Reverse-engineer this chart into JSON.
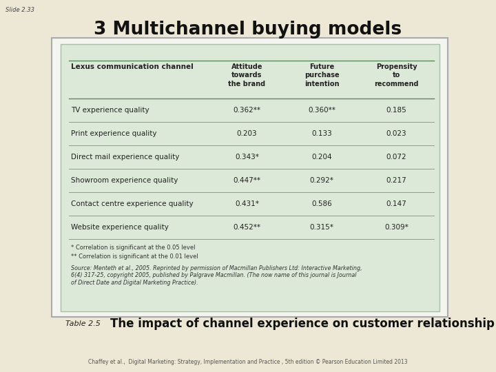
{
  "bg_color": "#ede8d5",
  "slide_label": "Slide 2.33",
  "title": "3 Multichannel buying models",
  "table_bg": "#dce8d8",
  "header_row": [
    "Lexus communication channel",
    "Attitude\ntowards\nthe brand",
    "Future\npurchase\nintention",
    "Propensity\nto\nrecommend"
  ],
  "rows": [
    [
      "TV experience quality",
      "0.362**",
      "0.360**",
      "0.185"
    ],
    [
      "Print experience quality",
      "0.203",
      "0.133",
      "0.023"
    ],
    [
      "Direct mail experience quality",
      "0.343*",
      "0.204",
      "0.072"
    ],
    [
      "Showroom experience quality",
      "0.447**",
      "0.292*",
      "0.217"
    ],
    [
      "Contact centre experience quality",
      "0.431*",
      "0.586",
      "0.147"
    ],
    [
      "Website experience quality",
      "0.452**",
      "0.315*",
      "0.309*"
    ]
  ],
  "footnote1": "* Correlation is significant at the 0.05 level",
  "footnote2": "** Correlation is significant at the 0.01 level",
  "source": "Source: Menteth et al., 2005. Reprinted by permission of Macmillan Publishers Ltd: Interactive Marketing,\n6(4) 317-25, copyright 2005, published by Palgrave Macmillan. (The now name of this journal is Journal\nof Direct Date and Digital Marketing Practice).",
  "caption_label": "Table 2.5",
  "caption": "The impact of channel experience on customer relationship",
  "footer": "Chaffey et al.,  Digital Marketing: Strategy, Implementation and Practice , 5th edition © Pearson Education Limited 2013",
  "line_color": "#7aaa7a",
  "header_line_color": "#5a8a5a",
  "outer_box_color": "#cccccc",
  "inner_box_color": "#aabcaa"
}
